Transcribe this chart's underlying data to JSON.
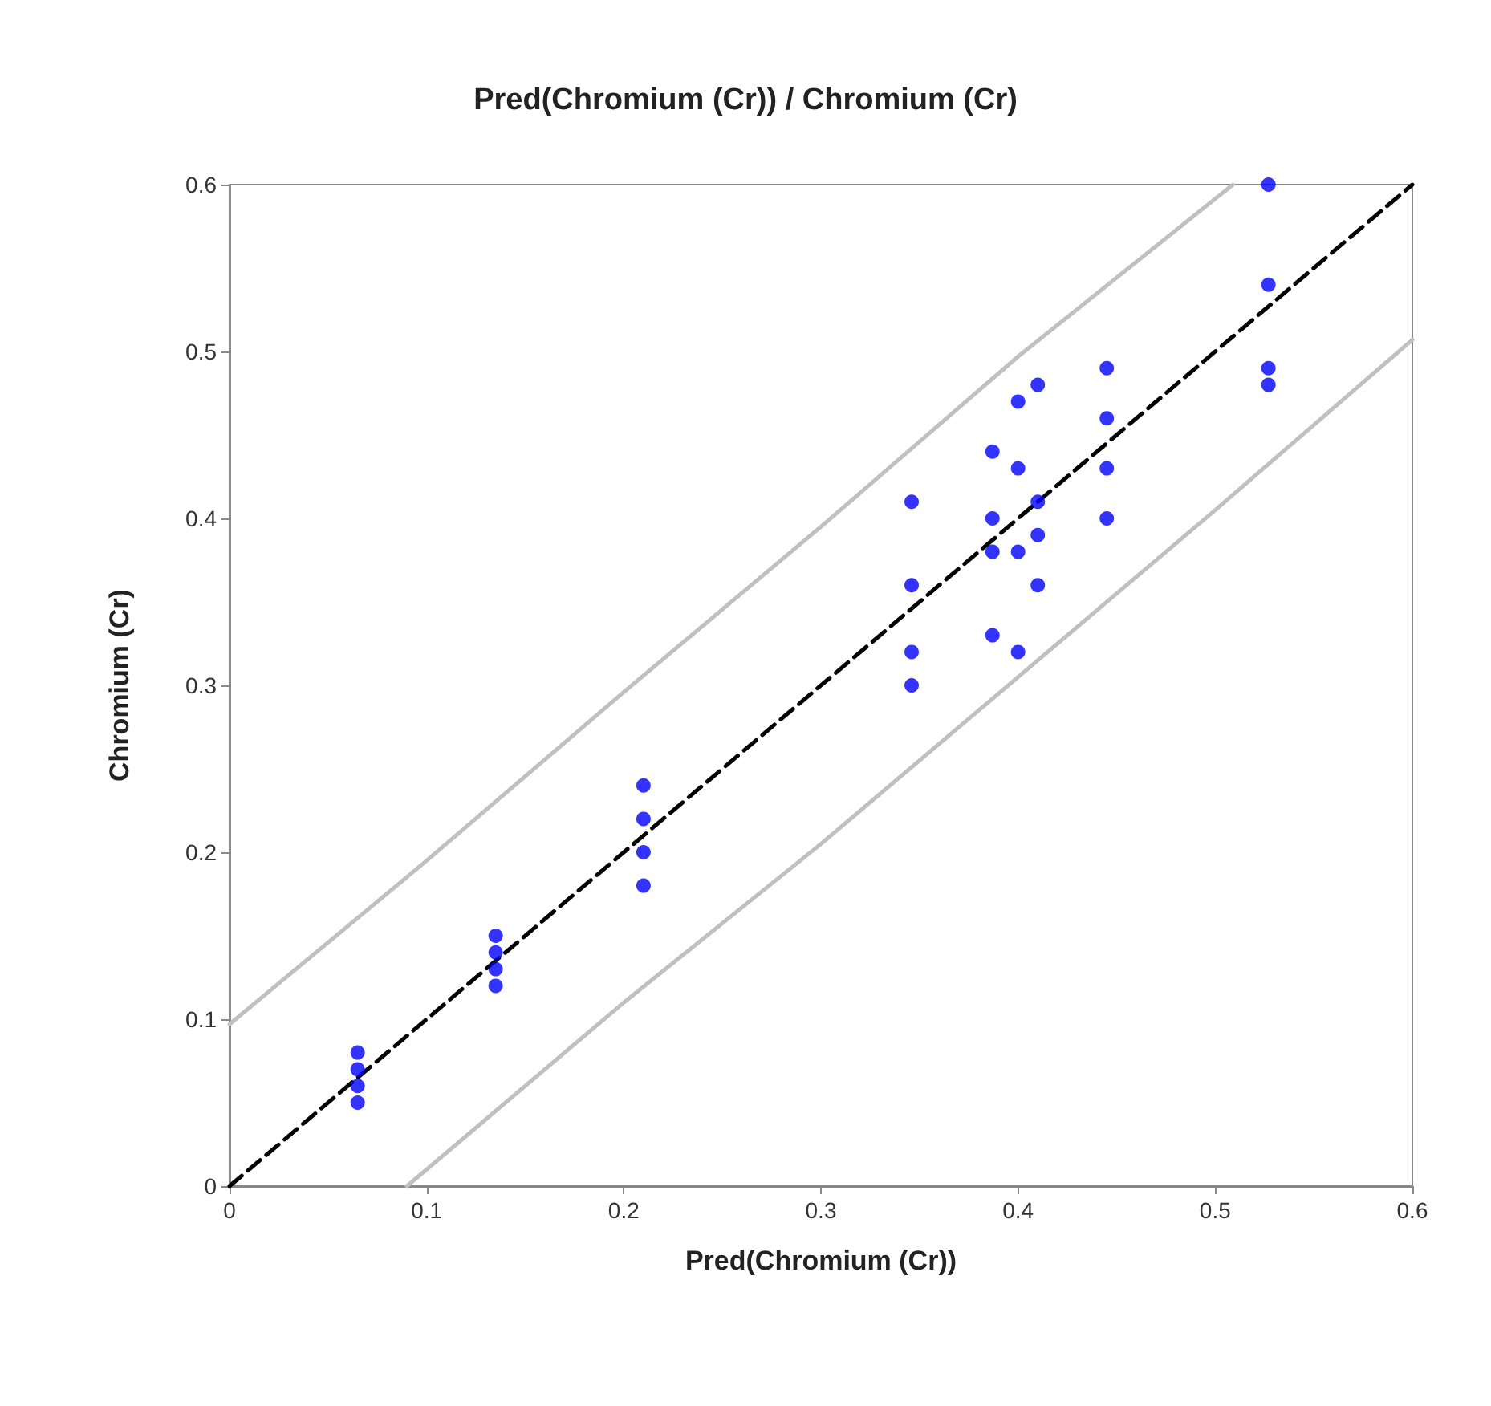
{
  "chart_data": {
    "type": "scatter",
    "title": "Pred(Chromium (Cr)) / Chromium (Cr)",
    "xlabel": "Pred(Chromium (Cr))",
    "ylabel": "Chromium (Cr)",
    "xlim": [
      0,
      0.6
    ],
    "xticks": [
      0,
      0.1,
      0.2,
      0.3,
      0.4,
      0.5,
      0.6
    ],
    "ylim": [
      0,
      0.6
    ],
    "yticks": [
      0,
      0.1,
      0.2,
      0.3,
      0.4,
      0.5,
      0.6
    ],
    "marker": "circle",
    "series": [
      {
        "type": "line",
        "color": "#c0c0c0",
        "line_style": "solid",
        "marker": "none",
        "x": [
          0,
          0.1,
          0.2,
          0.3,
          0.4,
          0.509
        ],
        "values": [
          0.097,
          0.195,
          0.296,
          0.395,
          0.497,
          0.6
        ]
      },
      {
        "type": "line",
        "color": "#c0c0c0",
        "line_style": "solid",
        "marker": "none",
        "x": [
          0.09,
          0.2,
          0.3,
          0.4,
          0.5,
          0.6
        ],
        "values": [
          0,
          0.11,
          0.205,
          0.305,
          0.405,
          0.507
        ]
      },
      {
        "type": "line",
        "color": "#000000",
        "line_style": "dashed",
        "marker": "none",
        "x": [
          0,
          0.6
        ],
        "values": [
          0,
          0.6
        ]
      },
      {
        "color": "#0000ff",
        "x": [
          0.065,
          0.065,
          0.065,
          0.065,
          0.135,
          0.135,
          0.135,
          0.135,
          0.21,
          0.21,
          0.21,
          0.21,
          0.346,
          0.346,
          0.346,
          0.346,
          0.387,
          0.387,
          0.387,
          0.387,
          0.4,
          0.4,
          0.4,
          0.4,
          0.41,
          0.41,
          0.41,
          0.41,
          0.445,
          0.445,
          0.445,
          0.445,
          0.527,
          0.527,
          0.527,
          0.527
        ],
        "values": [
          0.08,
          0.07,
          0.06,
          0.05,
          0.15,
          0.14,
          0.13,
          0.12,
          0.24,
          0.22,
          0.2,
          0.18,
          0.41,
          0.36,
          0.32,
          0.3,
          0.44,
          0.4,
          0.38,
          0.33,
          0.47,
          0.43,
          0.38,
          0.32,
          0.48,
          0.41,
          0.39,
          0.36,
          0.49,
          0.46,
          0.43,
          0.4,
          0.6,
          0.54,
          0.49,
          0.48
        ]
      }
    ]
  }
}
